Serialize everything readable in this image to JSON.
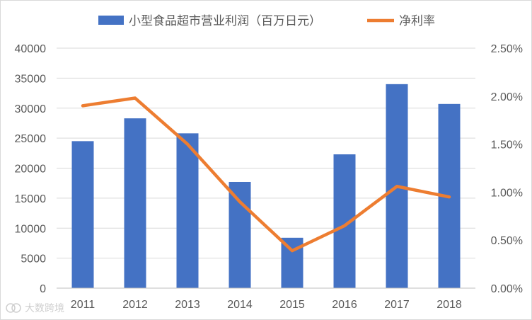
{
  "chart_data": {
    "type": "bar",
    "categories": [
      "2011",
      "2012",
      "2013",
      "2014",
      "2015",
      "2016",
      "2017",
      "2018"
    ],
    "series": [
      {
        "name": "小型食品超市营业利润（百万日元）",
        "type": "bar",
        "axis": "left",
        "color": "#4472C4",
        "values": [
          24500,
          28300,
          25800,
          17700,
          8400,
          22300,
          34000,
          30700
        ]
      },
      {
        "name": "净利率",
        "type": "line",
        "axis": "right",
        "color": "#ED7D31",
        "values": [
          0.019,
          0.0198,
          0.015,
          0.009,
          0.0039,
          0.0065,
          0.0106,
          0.0095
        ]
      }
    ],
    "y_left": {
      "min": 0,
      "max": 40000,
      "ticks": [
        "0",
        "5000",
        "10000",
        "15000",
        "20000",
        "25000",
        "30000",
        "35000",
        "40000"
      ]
    },
    "y_right": {
      "min": 0,
      "max": 0.025,
      "ticks": [
        "0.00%",
        "0.50%",
        "1.00%",
        "1.50%",
        "2.00%",
        "2.50%"
      ]
    },
    "grid": true,
    "legend_position": "top"
  },
  "watermark": {
    "text": "大数跨境"
  }
}
